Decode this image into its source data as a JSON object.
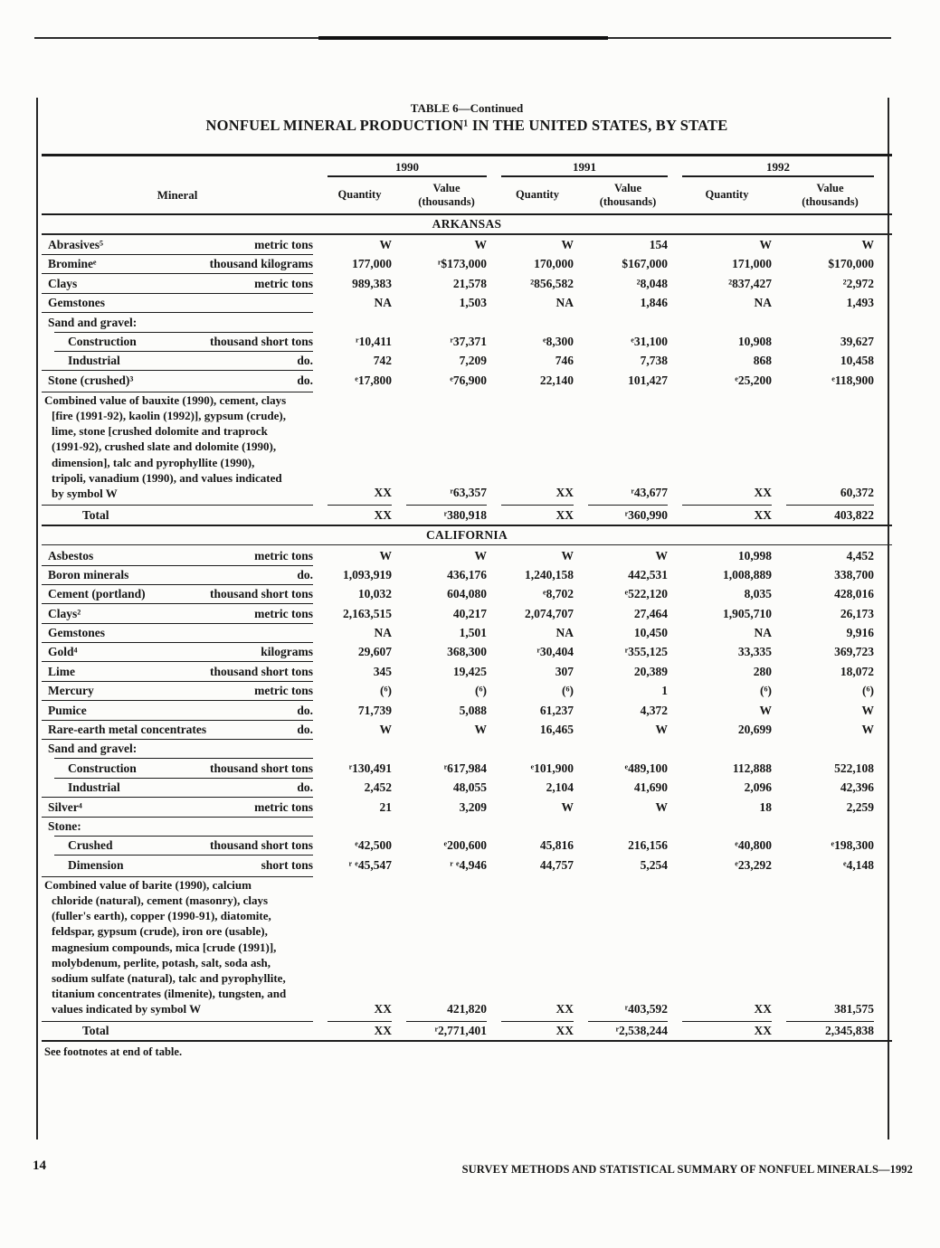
{
  "page": {
    "number": "14",
    "running_footer": "SURVEY METHODS AND STATISTICAL SUMMARY OF NONFUEL MINERALS—1992"
  },
  "table": {
    "caption": "TABLE 6—Continued",
    "title": "NONFUEL MINERAL PRODUCTION¹ IN THE UNITED STATES, BY STATE",
    "years": [
      "1990",
      "1991",
      "1992"
    ],
    "col_headers": {
      "mineral": "Mineral",
      "quantity": "Quantity",
      "value_line1": "Value",
      "value_line2": "(thousands)"
    },
    "footnote_note": "See footnotes at end of table.",
    "sections": [
      {
        "name": "ARKANSAS",
        "rows": [
          {
            "type": "mineral",
            "name": "Abrasives⁵",
            "unit": "metric tons",
            "values": [
              "W",
              "W",
              "W",
              "154",
              "W",
              "W"
            ]
          },
          {
            "type": "mineral",
            "name": "Bromineᵉ",
            "unit": "thousand kilograms",
            "values": [
              "177,000",
              "ʳ$173,000",
              "170,000",
              "$167,000",
              "171,000",
              "$170,000"
            ]
          },
          {
            "type": "mineral",
            "name": "Clays",
            "unit": "metric tons",
            "values": [
              "989,383",
              "21,578",
              "²856,582",
              "²8,048",
              "²837,427",
              "²2,972"
            ]
          },
          {
            "type": "mineral",
            "name": "Gemstones",
            "unit": "",
            "values": [
              "NA",
              "1,503",
              "NA",
              "1,846",
              "NA",
              "1,493"
            ]
          },
          {
            "type": "group",
            "name": "Sand and gravel:",
            "unit": ""
          },
          {
            "type": "mineral",
            "indent": 1,
            "name": "Construction",
            "unit": "thousand short tons",
            "values": [
              "ʳ10,411",
              "ʳ37,371",
              "ᵉ8,300",
              "ᵉ31,100",
              "10,908",
              "39,627"
            ]
          },
          {
            "type": "mineral",
            "indent": 1,
            "name": "Industrial",
            "unit": "do.",
            "values": [
              "742",
              "7,209",
              "746",
              "7,738",
              "868",
              "10,458"
            ]
          },
          {
            "type": "mineral",
            "name": "Stone (crushed)³",
            "unit": "do.",
            "values": [
              "ᵉ17,800",
              "ᵉ76,900",
              "22,140",
              "101,427",
              "ᵉ25,200",
              "ᵉ118,900"
            ]
          },
          {
            "type": "combined",
            "lines": [
              "Combined value of bauxite (1990), cement, clays",
              "[fire (1991-92), kaolin (1992)], gypsum (crude),",
              "lime, stone [crushed dolomite and traprock",
              "(1991-92), crushed slate and dolomite (1990),",
              "dimension], talc and pyrophyllite (1990),",
              "tripoli, vanadium (1990), and values indicated",
              "by symbol W"
            ],
            "values": [
              "XX",
              "ʳ63,357",
              "XX",
              "ʳ43,677",
              "XX",
              "60,372"
            ]
          },
          {
            "type": "total",
            "name": "Total",
            "unit": "",
            "values": [
              "XX",
              "ʳ380,918",
              "XX",
              "ʳ360,990",
              "XX",
              "403,822"
            ]
          }
        ]
      },
      {
        "name": "CALIFORNIA",
        "rows": [
          {
            "type": "mineral",
            "name": "Asbestos",
            "unit": "metric tons",
            "values": [
              "W",
              "W",
              "W",
              "W",
              "10,998",
              "4,452"
            ]
          },
          {
            "type": "mineral",
            "name": "Boron minerals",
            "unit": "do.",
            "values": [
              "1,093,919",
              "436,176",
              "1,240,158",
              "442,531",
              "1,008,889",
              "338,700"
            ]
          },
          {
            "type": "mineral",
            "name": "Cement (portland)",
            "unit": "thousand short tons",
            "values": [
              "10,032",
              "604,080",
              "ᵉ8,702",
              "ᵉ522,120",
              "8,035",
              "428,016"
            ]
          },
          {
            "type": "mineral",
            "name": "Clays²",
            "unit": "metric tons",
            "values": [
              "2,163,515",
              "40,217",
              "2,074,707",
              "27,464",
              "1,905,710",
              "26,173"
            ]
          },
          {
            "type": "mineral",
            "name": "Gemstones",
            "unit": "",
            "values": [
              "NA",
              "1,501",
              "NA",
              "10,450",
              "NA",
              "9,916"
            ]
          },
          {
            "type": "mineral",
            "name": "Gold⁴",
            "unit": "kilograms",
            "values": [
              "29,607",
              "368,300",
              "ʳ30,404",
              "ʳ355,125",
              "33,335",
              "369,723"
            ]
          },
          {
            "type": "mineral",
            "name": "Lime",
            "unit": "thousand short tons",
            "values": [
              "345",
              "19,425",
              "307",
              "20,389",
              "280",
              "18,072"
            ]
          },
          {
            "type": "mineral",
            "name": "Mercury",
            "unit": "metric tons",
            "values": [
              "(⁶)",
              "(⁶)",
              "(⁶)",
              "1",
              "(⁶)",
              "(⁶)"
            ]
          },
          {
            "type": "mineral",
            "name": "Pumice",
            "unit": "do.",
            "values": [
              "71,739",
              "5,088",
              "61,237",
              "4,372",
              "W",
              "W"
            ]
          },
          {
            "type": "mineral",
            "name": "Rare-earth metal concentrates",
            "unit": "do.",
            "values": [
              "W",
              "W",
              "16,465",
              "W",
              "20,699",
              "W"
            ]
          },
          {
            "type": "group",
            "name": "Sand and gravel:",
            "unit": ""
          },
          {
            "type": "mineral",
            "indent": 1,
            "name": "Construction",
            "unit": "thousand short tons",
            "values": [
              "ʳ130,491",
              "ʳ617,984",
              "ᵉ101,900",
              "ᵉ489,100",
              "112,888",
              "522,108"
            ]
          },
          {
            "type": "mineral",
            "indent": 1,
            "name": "Industrial",
            "unit": "do.",
            "values": [
              "2,452",
              "48,055",
              "2,104",
              "41,690",
              "2,096",
              "42,396"
            ]
          },
          {
            "type": "mineral",
            "name": "Silver⁴",
            "unit": "metric tons",
            "values": [
              "21",
              "3,209",
              "W",
              "W",
              "18",
              "2,259"
            ]
          },
          {
            "type": "group",
            "name": "Stone:",
            "unit": ""
          },
          {
            "type": "mineral",
            "indent": 1,
            "name": "Crushed",
            "unit": "thousand short tons",
            "values": [
              "ᵉ42,500",
              "ᵉ200,600",
              "45,816",
              "216,156",
              "ᵉ40,800",
              "ᵉ198,300"
            ]
          },
          {
            "type": "mineral",
            "indent": 1,
            "name": "Dimension",
            "unit": "short tons",
            "values": [
              "ʳ ᵉ45,547",
              "ʳ ᵉ4,946",
              "44,757",
              "5,254",
              "ᵉ23,292",
              "ᵉ4,148"
            ]
          },
          {
            "type": "combined",
            "lines": [
              "Combined value of barite (1990), calcium",
              "chloride (natural), cement (masonry), clays",
              "(fuller's earth), copper (1990-91), diatomite,",
              "feldspar, gypsum (crude), iron ore (usable),",
              "magnesium compounds, mica [crude (1991)],",
              "molybdenum, perlite, potash, salt, soda ash,",
              "sodium sulfate (natural), talc and pyrophyllite,",
              "titanium concentrates (ilmenite), tungsten, and",
              "values indicated by symbol W"
            ],
            "values": [
              "XX",
              "421,820",
              "XX",
              "ʳ403,592",
              "XX",
              "381,575"
            ]
          },
          {
            "type": "total",
            "name": "Total",
            "unit": "",
            "values": [
              "XX",
              "ʳ2,771,401",
              "XX",
              "ʳ2,538,244",
              "XX",
              "2,345,838"
            ]
          }
        ]
      }
    ]
  }
}
